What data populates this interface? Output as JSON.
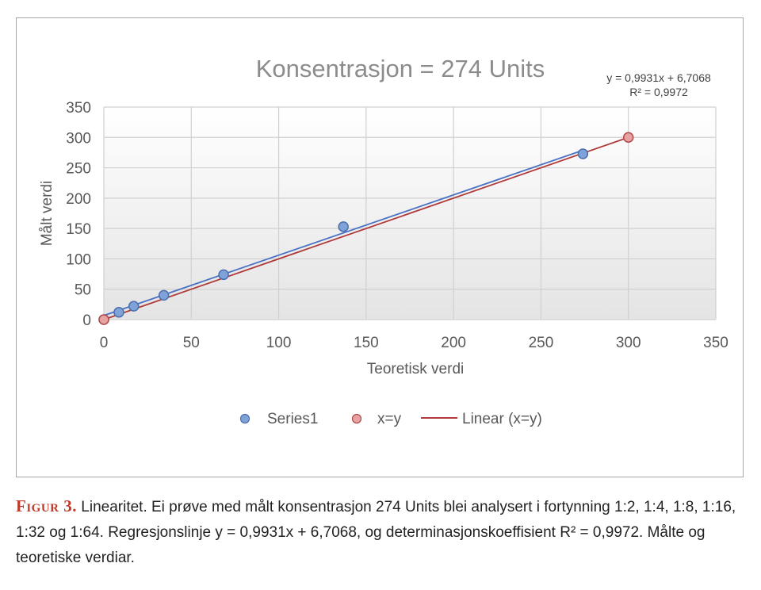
{
  "chart_data": {
    "type": "scatter",
    "title": "Konsentrasjon = 274 Units",
    "xlabel": "Teoretisk verdi",
    "ylabel": "Målt verdi",
    "xlim": [
      0,
      350
    ],
    "ylim": [
      0,
      350
    ],
    "xticks": [
      "0",
      "50",
      "100",
      "150",
      "200",
      "250",
      "300",
      "350"
    ],
    "yticks": [
      "0",
      "50",
      "100",
      "150",
      "200",
      "250",
      "300",
      "350"
    ],
    "grid": true,
    "legend_position": "bottom",
    "series": [
      {
        "name": "Series1",
        "color": "#7fa3d8",
        "edge": "#4a6fae",
        "points": [
          [
            0,
            0
          ],
          [
            8.6,
            12
          ],
          [
            17.1,
            22
          ],
          [
            34.3,
            40
          ],
          [
            68.5,
            74
          ],
          [
            137,
            153
          ],
          [
            274,
            273
          ]
        ]
      },
      {
        "name": "x=y",
        "color": "#e8a2a2",
        "edge": "#b04a4a",
        "points": [
          [
            0,
            0
          ],
          [
            300,
            300
          ]
        ]
      }
    ],
    "trendlines": [
      {
        "name": "",
        "color": "#4a72c4",
        "slope": 0.9931,
        "intercept": 6.7068,
        "x_range": [
          0,
          274
        ],
        "equation": "y = 0,9931x + 6,7068",
        "r2": "R² = 0,9972"
      },
      {
        "name": "Linear (x=y)",
        "color": "#b03a3a",
        "slope": 1,
        "intercept": 0,
        "x_range": [
          0,
          300
        ]
      }
    ],
    "legend": [
      "Series1",
      "x=y",
      "Linear (x=y)"
    ]
  },
  "caption": {
    "label": "Figur 3.",
    "text": "Linearitet. Ei prøve med målt konsentrasjon 274 Units blei analysert i fortynning 1:2, 1:4, 1:8, 1:16, 1:32 og 1:64. Regresjonslinje y = 0,9931x + 6,7068, og determinasjonskoeffisient R² = 0,9972. Målte og teoretiske verdiar."
  }
}
